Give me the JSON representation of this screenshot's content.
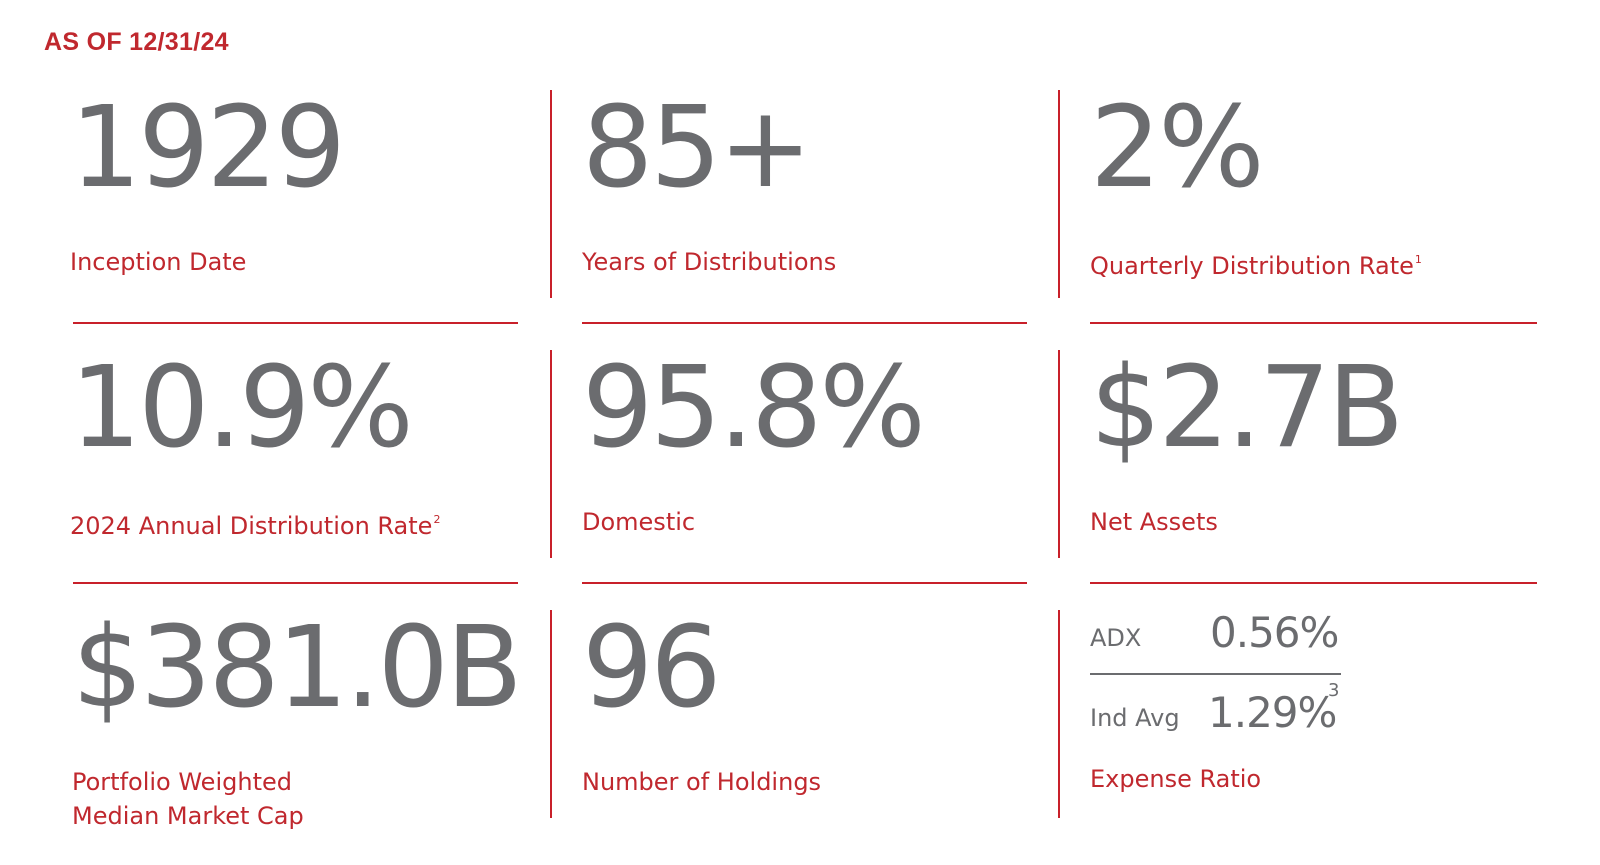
{
  "as_of": "AS OF 12/31/24",
  "stats": [
    {
      "value": "1929",
      "label": "Inception Date",
      "sup": ""
    },
    {
      "value": "85+",
      "label": "Years of Distributions",
      "sup": ""
    },
    {
      "value": "2%",
      "label": "Quarterly Distribution Rate",
      "sup": "1"
    },
    {
      "value": "10.9%",
      "label": "2024 Annual Distribution Rate",
      "sup": "2"
    },
    {
      "value": "95.8%",
      "label": "Domestic",
      "sup": ""
    },
    {
      "value": "$2.7B",
      "label": "Net Assets",
      "sup": ""
    },
    {
      "value": "$381.0B",
      "label_line1": "Portfolio Weighted",
      "label_line2": "Median Market Cap"
    },
    {
      "value": "96",
      "label": "Number of Holdings",
      "sup": ""
    }
  ],
  "expense_ratio": {
    "adx_label": "ADX",
    "adx_value": "0.56%",
    "avg_label": "Ind Avg",
    "avg_value": "1.29%",
    "avg_sup": "3",
    "label": "Expense Ratio"
  },
  "colors": {
    "accent": "#c0282e",
    "text": "#6b6c6f"
  }
}
